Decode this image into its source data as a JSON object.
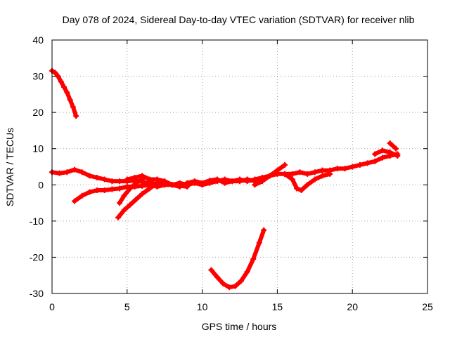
{
  "chart_data": {
    "type": "scatter",
    "title": "Day 078 of 2024, Sidereal Day-to-day VTEC variation (SDTVAR) for receiver nlib",
    "xlabel": "GPS time / hours",
    "ylabel": "SDTVAR / TECUs",
    "xlim": [
      0,
      25
    ],
    "ylim": [
      -30,
      40
    ],
    "xticks": [
      0,
      5,
      10,
      15,
      20,
      25
    ],
    "yticks": [
      -30,
      -20,
      -10,
      0,
      10,
      20,
      30,
      40
    ],
    "grid": true,
    "marker_color": "#ff0000",
    "series": [
      {
        "name": "arc-early-decline",
        "points": [
          [
            0.0,
            31.5
          ],
          [
            0.2,
            31
          ],
          [
            0.4,
            30
          ],
          [
            0.6,
            28.5
          ],
          [
            0.8,
            27
          ],
          [
            1.0,
            25.5
          ],
          [
            1.2,
            23.5
          ],
          [
            1.4,
            21.5
          ],
          [
            1.6,
            19
          ]
        ]
      },
      {
        "name": "arc-main-band",
        "points": [
          [
            0.0,
            3.5
          ],
          [
            0.5,
            3.2
          ],
          [
            1.0,
            3.5
          ],
          [
            1.5,
            4.2
          ],
          [
            2.0,
            3.5
          ],
          [
            2.5,
            2.5
          ],
          [
            3.0,
            2
          ],
          [
            3.5,
            1.5
          ],
          [
            4.0,
            1
          ],
          [
            4.5,
            1
          ],
          [
            5.0,
            1
          ],
          [
            5.5,
            1.2
          ],
          [
            6.0,
            0.8
          ],
          [
            6.5,
            0.5
          ],
          [
            7.0,
            0.2
          ],
          [
            7.5,
            0.5
          ],
          [
            8.0,
            0
          ],
          [
            8.5,
            0.5
          ],
          [
            9.0,
            0
          ],
          [
            9.5,
            0.5
          ],
          [
            10.0,
            0
          ],
          [
            10.5,
            0.5
          ],
          [
            11.0,
            1
          ],
          [
            11.5,
            1.5
          ],
          [
            12.0,
            1
          ],
          [
            12.5,
            1.5
          ],
          [
            13.0,
            1
          ],
          [
            13.5,
            1.5
          ],
          [
            14.0,
            2
          ],
          [
            14.5,
            2.5
          ],
          [
            15.0,
            3
          ],
          [
            15.5,
            3
          ],
          [
            16.0,
            3
          ],
          [
            16.5,
            3.5
          ],
          [
            17.0,
            3
          ],
          [
            17.5,
            3.5
          ],
          [
            18.0,
            4
          ],
          [
            18.5,
            4
          ],
          [
            19.0,
            4.5
          ],
          [
            19.5,
            4.5
          ],
          [
            20.0,
            5
          ],
          [
            20.5,
            5.5
          ],
          [
            21.0,
            6
          ],
          [
            21.5,
            6.5
          ],
          [
            22.0,
            7.5
          ],
          [
            22.5,
            8
          ],
          [
            23.0,
            8.5
          ]
        ]
      },
      {
        "name": "arc-mid-upper",
        "points": [
          [
            5.0,
            1.5
          ],
          [
            5.5,
            2
          ],
          [
            6.0,
            2.5
          ],
          [
            6.5,
            1.5
          ],
          [
            7.0,
            1.5
          ],
          [
            7.5,
            1
          ],
          [
            8.0,
            0
          ],
          [
            8.5,
            -0.5
          ],
          [
            9.0,
            0.5
          ],
          [
            9.5,
            1
          ],
          [
            10.0,
            0.5
          ],
          [
            10.5,
            1.2
          ],
          [
            11.0,
            1.5
          ],
          [
            11.5,
            0.5
          ],
          [
            12.0,
            1
          ],
          [
            12.5,
            1
          ],
          [
            13.0,
            1.5
          ],
          [
            13.5,
            1
          ],
          [
            14.0,
            2
          ]
        ]
      },
      {
        "name": "arc-lower-rise",
        "points": [
          [
            1.5,
            -4.5
          ],
          [
            2.0,
            -3
          ],
          [
            2.5,
            -2
          ],
          [
            3.0,
            -1.5
          ],
          [
            3.5,
            -1.5
          ],
          [
            4.0,
            -1.2
          ],
          [
            4.5,
            -1
          ],
          [
            5.0,
            -0.5
          ],
          [
            5.5,
            -0.5
          ],
          [
            6.0,
            -0.3
          ],
          [
            6.5,
            0
          ],
          [
            7.0,
            -0.5
          ],
          [
            7.5,
            0
          ],
          [
            8.0,
            0
          ],
          [
            9.0,
            -0.5
          ]
        ]
      },
      {
        "name": "arc-steep-rise-a",
        "points": [
          [
            4.4,
            -9
          ],
          [
            4.8,
            -7
          ],
          [
            5.2,
            -5.5
          ],
          [
            5.6,
            -4
          ],
          [
            6.0,
            -2.5
          ],
          [
            6.5,
            -1
          ],
          [
            7.0,
            0.5
          ]
        ]
      },
      {
        "name": "arc-steep-rise-b",
        "points": [
          [
            4.5,
            -5
          ],
          [
            4.8,
            -3
          ],
          [
            5.2,
            -1
          ],
          [
            5.6,
            0.5
          ],
          [
            6.0,
            1.5
          ]
        ]
      },
      {
        "name": "arc-late-rise",
        "points": [
          [
            13.5,
            0
          ],
          [
            14.0,
            1
          ],
          [
            14.5,
            2.5
          ],
          [
            15.0,
            4
          ],
          [
            15.5,
            5.5
          ]
        ]
      },
      {
        "name": "arc-afternoon-dip",
        "points": [
          [
            15.5,
            3
          ],
          [
            16.0,
            1.5
          ],
          [
            16.3,
            -1
          ],
          [
            16.6,
            -1.5
          ],
          [
            17.0,
            0
          ],
          [
            17.5,
            1.5
          ],
          [
            18.0,
            2.5
          ],
          [
            18.5,
            3
          ]
        ]
      },
      {
        "name": "arc-deep-trough",
        "points": [
          [
            10.6,
            -23.5
          ],
          [
            11.0,
            -25.5
          ],
          [
            11.4,
            -27.3
          ],
          [
            11.8,
            -28.3
          ],
          [
            12.2,
            -28
          ],
          [
            12.6,
            -26.5
          ],
          [
            13.0,
            -24
          ],
          [
            13.4,
            -20.5
          ],
          [
            13.8,
            -16
          ],
          [
            14.1,
            -12.5
          ]
        ]
      },
      {
        "name": "arc-end-spur",
        "points": [
          [
            22.5,
            11.5
          ],
          [
            22.9,
            10
          ]
        ]
      },
      {
        "name": "arc-end-wave",
        "points": [
          [
            21.5,
            8.5
          ],
          [
            22.0,
            9.5
          ],
          [
            22.5,
            9
          ],
          [
            23.0,
            8
          ]
        ]
      }
    ]
  }
}
